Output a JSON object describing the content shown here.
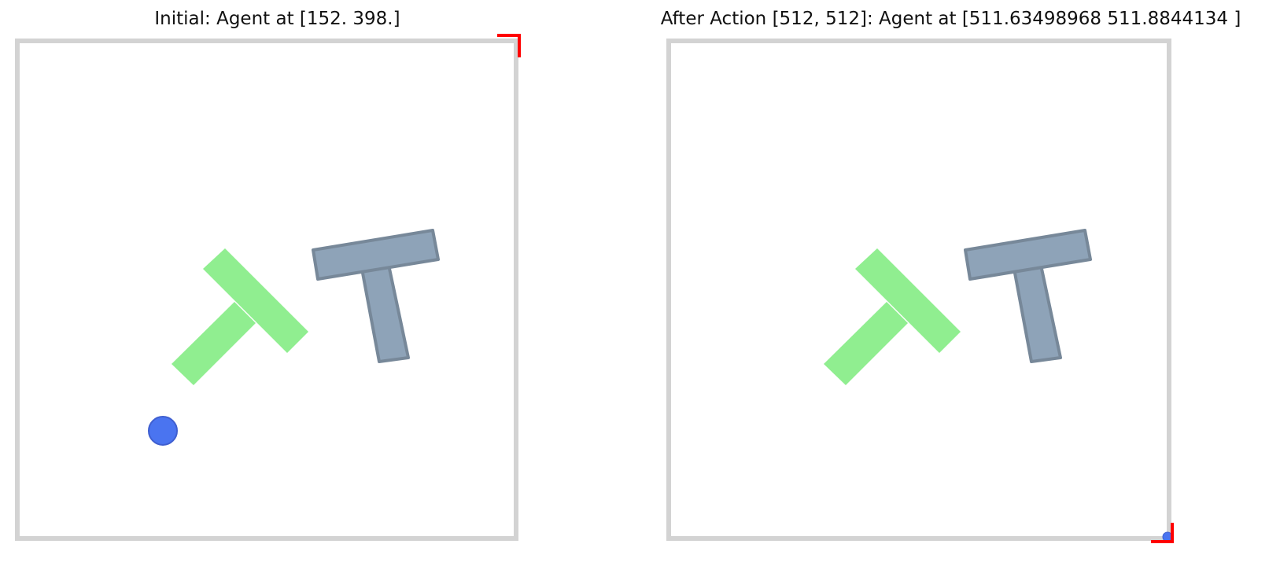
{
  "panels": [
    {
      "title": "Initial: Agent at [152. 398.]",
      "agent_visible": true,
      "target_marker": "top-right"
    },
    {
      "title": "After Action [512, 512]: Agent at [511.63498968 511.8844134 ]",
      "agent_visible": true,
      "target_marker": "bottom-right"
    }
  ],
  "colors": {
    "boundary": "#d3d3d3",
    "goal_t": "#90ee90",
    "block_t_fill": "#8ea3b8",
    "block_t_edge": "#778899",
    "agent_fill": "#4a74f0",
    "agent_edge": "#3f5fd0",
    "marker": "#ff0000"
  }
}
